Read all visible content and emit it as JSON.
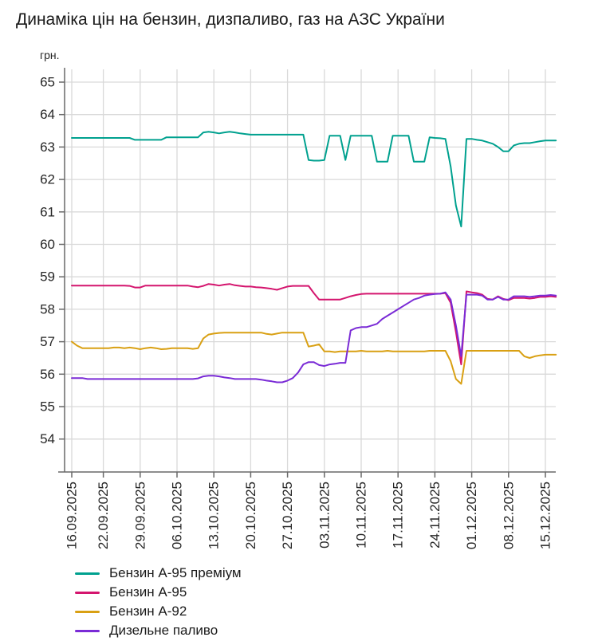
{
  "title": "Динаміка цін на бензин, дизпаливо, газ на АЗС України",
  "colors": {
    "background": "#ffffff",
    "grid": "#d9d9d9",
    "axis": "#696969",
    "tick_text": "#262626",
    "title_text": "#1a1a1a"
  },
  "chart_data": {
    "type": "line",
    "title": "Динаміка цін на бензин, дизпаливо, газ на АЗС України",
    "ylabel": "грн.",
    "xlabel": "",
    "grid": true,
    "legend_position": "bottom-left",
    "ylim": [
      53,
      65.5
    ],
    "y_ticks": [
      54,
      55,
      56,
      57,
      58,
      59,
      60,
      61,
      62,
      63,
      64,
      65
    ],
    "x_tick_labels": [
      "16.09.2025",
      "22.09.2025",
      "29.09.2025",
      "06.10.2025",
      "13.10.2025",
      "20.10.2025",
      "27.10.2025",
      "03.11.2025",
      "10.11.2025",
      "17.11.2025",
      "24.11.2025",
      "01.12.2025",
      "08.12.2025",
      "15.12.2025"
    ],
    "x_tick_days": [
      0,
      6,
      13,
      20,
      27,
      34,
      41,
      48,
      55,
      62,
      69,
      76,
      83,
      90
    ],
    "x_start_date": "16.09.2025",
    "series": [
      {
        "name": "Бензин А-95 преміум",
        "color": "#00a18f",
        "values": [
          63.28,
          63.28,
          63.28,
          63.28,
          63.28,
          63.28,
          63.28,
          63.28,
          63.28,
          63.28,
          63.28,
          63.28,
          63.22,
          63.22,
          63.22,
          63.22,
          63.22,
          63.22,
          63.3,
          63.3,
          63.3,
          63.3,
          63.3,
          63.3,
          63.3,
          63.45,
          63.47,
          63.45,
          63.42,
          63.45,
          63.47,
          63.45,
          63.42,
          63.4,
          63.38,
          63.38,
          63.38,
          63.38,
          63.38,
          63.38,
          63.38,
          63.38,
          63.38,
          63.38,
          63.38,
          62.6,
          62.58,
          62.58,
          62.6,
          63.35,
          63.35,
          63.35,
          62.6,
          63.35,
          63.35,
          63.35,
          63.35,
          63.35,
          62.55,
          62.55,
          62.55,
          63.35,
          63.35,
          63.35,
          63.35,
          62.55,
          62.55,
          62.55,
          63.3,
          63.28,
          63.27,
          63.25,
          62.4,
          61.2,
          60.55,
          63.25,
          63.25,
          63.22,
          63.2,
          63.15,
          63.1,
          63.0,
          62.87,
          62.87,
          63.05,
          63.1,
          63.12,
          63.12,
          63.15,
          63.18,
          63.2,
          63.2,
          63.2
        ]
      },
      {
        "name": "Бензин А-95",
        "color": "#d4156e",
        "values": [
          58.73,
          58.73,
          58.73,
          58.73,
          58.73,
          58.73,
          58.73,
          58.73,
          58.73,
          58.73,
          58.73,
          58.72,
          58.67,
          58.67,
          58.73,
          58.73,
          58.73,
          58.73,
          58.73,
          58.73,
          58.73,
          58.73,
          58.73,
          58.7,
          58.68,
          58.72,
          58.78,
          58.76,
          58.73,
          58.76,
          58.78,
          58.74,
          58.72,
          58.7,
          58.7,
          58.68,
          58.67,
          58.65,
          58.63,
          58.6,
          58.65,
          58.7,
          58.72,
          58.72,
          58.72,
          58.72,
          58.5,
          58.3,
          58.3,
          58.3,
          58.3,
          58.3,
          58.35,
          58.4,
          58.44,
          58.47,
          58.48,
          58.48,
          58.48,
          58.48,
          58.48,
          58.48,
          58.48,
          58.48,
          58.48,
          58.48,
          58.48,
          58.48,
          58.48,
          58.48,
          58.48,
          58.5,
          58.2,
          57.3,
          56.3,
          58.55,
          58.52,
          58.5,
          58.45,
          58.32,
          58.3,
          58.4,
          58.32,
          58.28,
          58.35,
          58.35,
          58.35,
          58.33,
          58.35,
          58.38,
          58.38,
          58.4,
          58.38
        ]
      },
      {
        "name": "Бензин А-92",
        "color": "#d9a013",
        "values": [
          57.0,
          56.88,
          56.8,
          56.8,
          56.8,
          56.8,
          56.8,
          56.8,
          56.82,
          56.82,
          56.8,
          56.82,
          56.8,
          56.77,
          56.8,
          56.82,
          56.8,
          56.77,
          56.78,
          56.8,
          56.8,
          56.8,
          56.8,
          56.78,
          56.8,
          57.1,
          57.22,
          57.25,
          57.27,
          57.28,
          57.28,
          57.28,
          57.28,
          57.28,
          57.28,
          57.28,
          57.28,
          57.24,
          57.22,
          57.25,
          57.28,
          57.28,
          57.28,
          57.28,
          57.28,
          56.85,
          56.88,
          56.92,
          56.7,
          56.7,
          56.68,
          56.7,
          56.7,
          56.7,
          56.7,
          56.72,
          56.7,
          56.7,
          56.7,
          56.7,
          56.72,
          56.7,
          56.7,
          56.7,
          56.7,
          56.7,
          56.7,
          56.7,
          56.72,
          56.72,
          56.72,
          56.72,
          56.4,
          55.85,
          55.7,
          56.72,
          56.72,
          56.72,
          56.72,
          56.72,
          56.72,
          56.72,
          56.72,
          56.72,
          56.72,
          56.72,
          56.55,
          56.5,
          56.55,
          56.58,
          56.6,
          56.6,
          56.6
        ]
      },
      {
        "name": "Дизельне паливо",
        "color": "#7a2bd6",
        "values": [
          55.88,
          55.88,
          55.88,
          55.85,
          55.85,
          55.85,
          55.85,
          55.85,
          55.85,
          55.85,
          55.85,
          55.85,
          55.85,
          55.85,
          55.85,
          55.85,
          55.85,
          55.85,
          55.85,
          55.85,
          55.85,
          55.85,
          55.85,
          55.85,
          55.87,
          55.93,
          55.95,
          55.95,
          55.93,
          55.9,
          55.88,
          55.85,
          55.85,
          55.85,
          55.85,
          55.85,
          55.83,
          55.8,
          55.78,
          55.75,
          55.75,
          55.8,
          55.88,
          56.05,
          56.3,
          56.37,
          56.37,
          56.28,
          56.25,
          56.3,
          56.32,
          56.35,
          56.35,
          57.35,
          57.42,
          57.45,
          57.45,
          57.5,
          57.55,
          57.7,
          57.8,
          57.9,
          58.0,
          58.1,
          58.2,
          58.3,
          58.35,
          58.42,
          58.45,
          58.47,
          58.48,
          58.52,
          58.3,
          57.5,
          56.55,
          58.45,
          58.45,
          58.45,
          58.42,
          58.3,
          58.3,
          58.38,
          58.3,
          58.3,
          58.4,
          58.4,
          58.4,
          58.38,
          58.4,
          58.42,
          58.42,
          58.44,
          58.42
        ]
      }
    ]
  }
}
